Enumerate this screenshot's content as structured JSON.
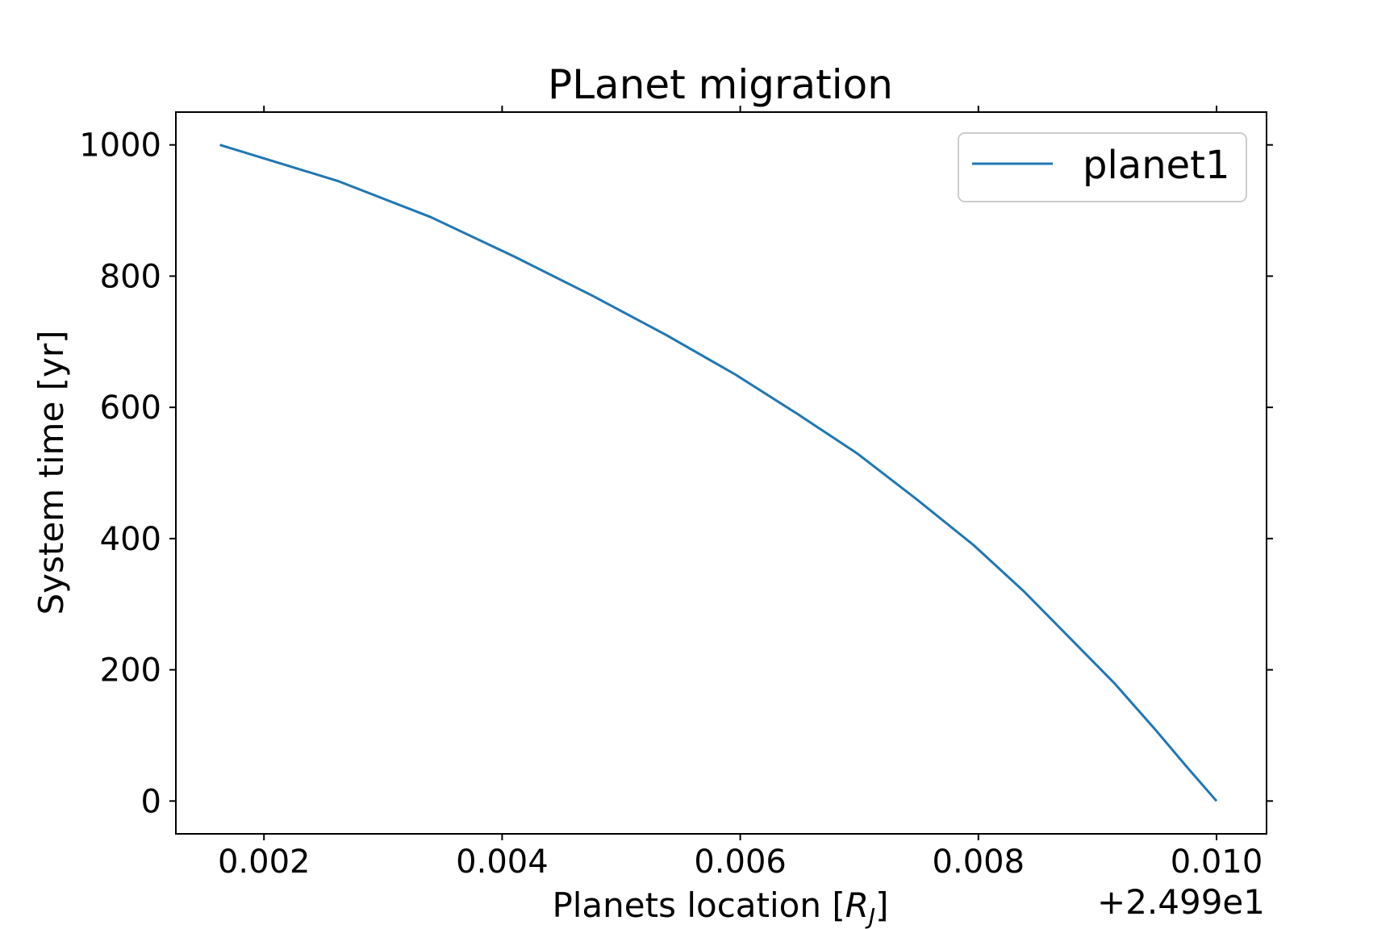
{
  "chart_data": {
    "type": "line",
    "title": "PLanet migration",
    "xlabel": "Planets location [",
    "xlabel_symbol": "R",
    "xlabel_subscript": "J",
    "xlabel_end": "]",
    "ylabel": "System time [yr]",
    "x_offset_text": "+2.499e1",
    "x_offset": 24.99,
    "xlim": [
      0.00126,
      0.01042
    ],
    "ylim": [
      -50,
      1050
    ],
    "x_ticks": [
      0.002,
      0.004,
      0.006,
      0.008,
      0.01
    ],
    "x_tick_labels": [
      "0.002",
      "0.004",
      "0.006",
      "0.008",
      "0.010"
    ],
    "y_ticks": [
      0,
      200,
      400,
      600,
      800,
      1000
    ],
    "y_tick_labels": [
      "0",
      "200",
      "400",
      "600",
      "800",
      "1000"
    ],
    "grid": false,
    "legend_position": "top-right",
    "series": [
      {
        "name": "planet1",
        "color": "#1f77b4",
        "x": [
          0.01,
          0.00976,
          0.00948,
          0.00914,
          0.00876,
          0.00838,
          0.00796,
          0.00748,
          0.00698,
          0.00648,
          0.00596,
          0.00538,
          0.00476,
          0.0041,
          0.0034,
          0.00262,
          0.00163
        ],
        "y": [
          0,
          50,
          110,
          180,
          250,
          320,
          390,
          460,
          530,
          590,
          650,
          710,
          770,
          830,
          890,
          945,
          1000
        ]
      }
    ]
  }
}
